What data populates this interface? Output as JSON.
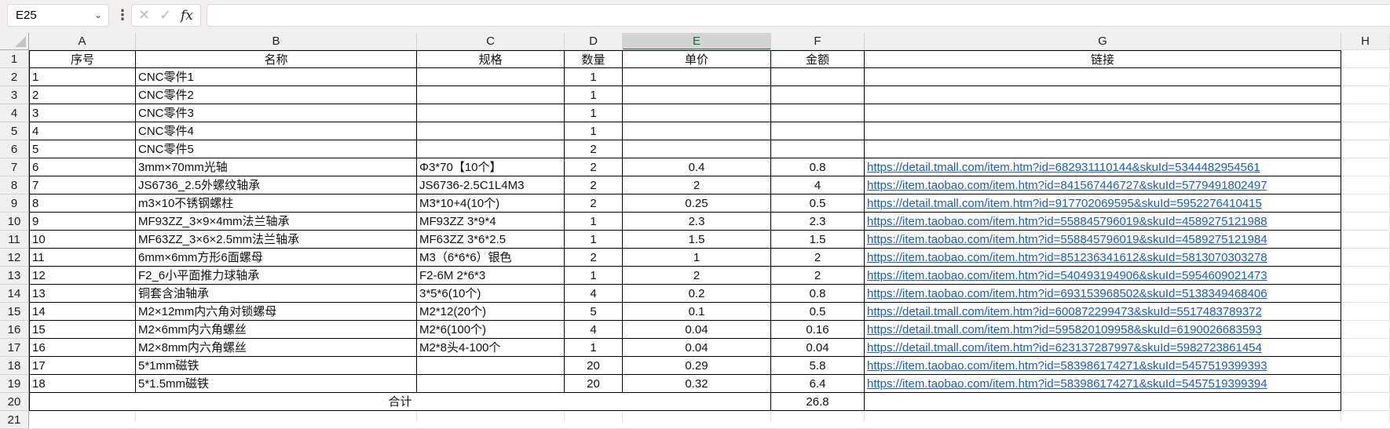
{
  "formula_bar": {
    "name_box": "E25",
    "formula": "",
    "cancel_icon": "✕",
    "confirm_icon": "✓",
    "fx_label": "fx"
  },
  "columns": [
    "A",
    "B",
    "C",
    "D",
    "E",
    "F",
    "G",
    "H"
  ],
  "selected_column": "E",
  "row_numbers": [
    "1",
    "2",
    "3",
    "4",
    "5",
    "6",
    "7",
    "8",
    "9",
    "10",
    "11",
    "12",
    "13",
    "14",
    "15",
    "16",
    "17",
    "18",
    "19",
    "20",
    "21"
  ],
  "header": [
    "序号",
    "名称",
    "规格",
    "数量",
    "单价",
    "金额",
    "链接"
  ],
  "rows": [
    [
      "1",
      "CNC零件1",
      "",
      "1",
      "",
      "",
      ""
    ],
    [
      "2",
      "CNC零件2",
      "",
      "1",
      "",
      "",
      ""
    ],
    [
      "3",
      "CNC零件3",
      "",
      "1",
      "",
      "",
      ""
    ],
    [
      "4",
      "CNC零件4",
      "",
      "1",
      "",
      "",
      ""
    ],
    [
      "5",
      "CNC零件5",
      "",
      "2",
      "",
      "",
      ""
    ],
    [
      "6",
      "3mm×70mm光轴",
      "Φ3*70【10个】",
      "2",
      "0.4",
      "0.8",
      "https://detail.tmall.com/item.htm?id=682931110144&skuId=5344482954561"
    ],
    [
      "7",
      "JS6736_2.5外螺纹轴承",
      "JS6736-2.5C1L4M3",
      "2",
      "2",
      "4",
      "https://item.taobao.com/item.htm?id=841567446727&skuId=5779491802497"
    ],
    [
      "8",
      "m3×10不锈钢螺柱",
      "M3*10+4(10个)",
      "2",
      "0.25",
      "0.5",
      "https://detail.tmall.com/item.htm?id=917702069595&skuId=5952276410415"
    ],
    [
      "9",
      "MF93ZZ_3×9×4mm法兰轴承",
      "MF93ZZ 3*9*4",
      "1",
      "2.3",
      "2.3",
      "https://item.taobao.com/item.htm?id=558845796019&skuId=4589275121988"
    ],
    [
      "10",
      "MF63ZZ_3×6×2.5mm法兰轴承",
      "MF63ZZ 3*6*2.5",
      "1",
      "1.5",
      "1.5",
      "https://item.taobao.com/item.htm?id=558845796019&skuId=4589275121984"
    ],
    [
      "11",
      "6mm×6mm方形6面螺母",
      "M3（6*6*6）银色",
      "2",
      "1",
      "2",
      "https://item.taobao.com/item.htm?id=851236341612&skuId=5813070303278"
    ],
    [
      "12",
      "F2_6小平面推力球轴承",
      "F2-6M 2*6*3",
      "1",
      "2",
      "2",
      "https://item.taobao.com/item.htm?id=540493194906&skuId=5954609021473"
    ],
    [
      "13",
      "铜套含油轴承",
      "3*5*6(10个)",
      "4",
      "0.2",
      "0.8",
      "https://item.taobao.com/item.htm?id=693153968502&skuId=5138349468406"
    ],
    [
      "14",
      "M2×12mm内六角对锁螺母",
      "M2*12(20个)",
      "5",
      "0.1",
      "0.5",
      "https://detail.tmall.com/item.htm?id=600872299473&skuId=5517483789372"
    ],
    [
      "15",
      "M2×6mm内六角螺丝",
      "M2*6(100个)",
      "4",
      "0.04",
      "0.16",
      "https://detail.tmall.com/item.htm?id=595820109958&skuId=6190026683593"
    ],
    [
      "16",
      "M2×8mm内六角螺丝",
      "M2*8头4-100个",
      "1",
      "0.04",
      "0.04",
      "https://detail.tmall.com/item.htm?id=623137287997&skuId=5982723861454"
    ],
    [
      "17",
      "5*1mm磁铁",
      "",
      "20",
      "0.29",
      "5.8",
      "https://item.taobao.com/item.htm?id=583986174271&skuId=5457519399393"
    ],
    [
      "18",
      "5*1.5mm磁铁",
      "",
      "20",
      "0.32",
      "6.4",
      "https://item.taobao.com/item.htm?id=583986174271&skuId=5457519399394"
    ]
  ],
  "total": {
    "label": "合计",
    "amount": "26.8"
  },
  "colors": {
    "link": "#1a5dc8",
    "selected_header": "#217346"
  }
}
